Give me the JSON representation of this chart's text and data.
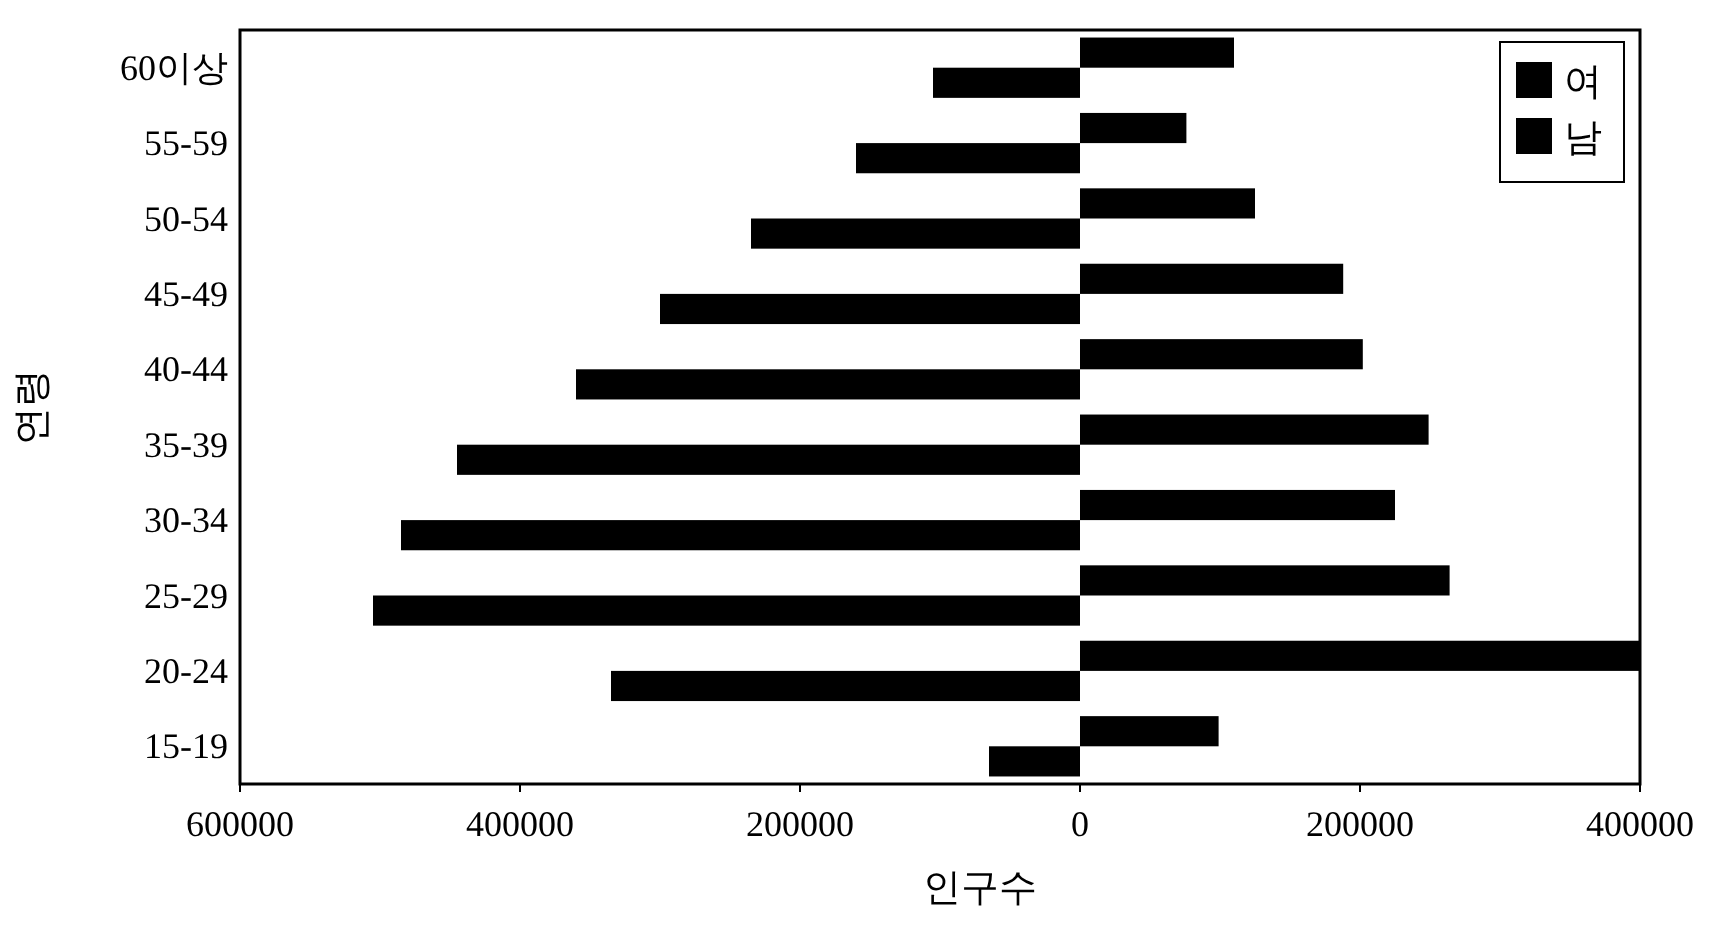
{
  "chart_data": {
    "type": "bar",
    "orientation": "horizontal",
    "xlabel": "인구수",
    "ylabel": "연령",
    "categories": [
      "60이상",
      "55-59",
      "50-54",
      "45-49",
      "40-44",
      "35-39",
      "30-34",
      "25-29",
      "20-24",
      "15-19"
    ],
    "series": [
      {
        "name": "여",
        "color": "#000000",
        "values": [
          110000,
          76000,
          125000,
          188000,
          202000,
          249000,
          225000,
          264000,
          400000,
          99000
        ]
      },
      {
        "name": "남",
        "color": "#000000",
        "values": [
          -105000,
          -160000,
          -235000,
          -300000,
          -360000,
          -445000,
          -485000,
          -505000,
          -335000,
          -65000
        ]
      }
    ],
    "xlim": [
      -600000,
      400000
    ],
    "xticks": [
      {
        "value": -600000,
        "label": "600000"
      },
      {
        "value": -400000,
        "label": "400000"
      },
      {
        "value": -200000,
        "label": "200000"
      },
      0,
      200000,
      400000
    ],
    "grid": false,
    "legend": "top right"
  }
}
